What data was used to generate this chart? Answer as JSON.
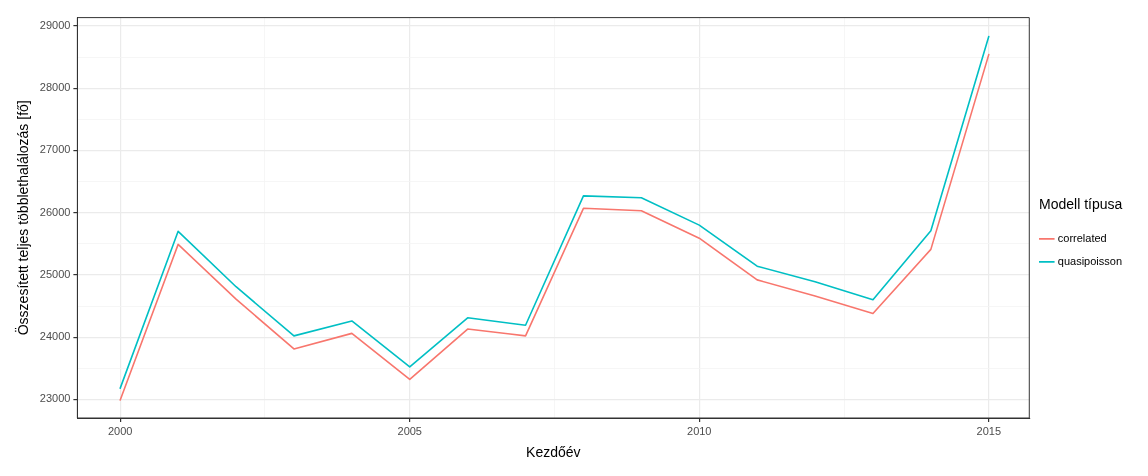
{
  "chart_data": {
    "type": "line",
    "xlabel": "Kezdőév",
    "ylabel": "Összesített teljes többlethalálozás [fő]",
    "legend_title": "Modell típusa",
    "legend": "right",
    "grid": true,
    "marker": "none",
    "line_style": "solid",
    "x": [
      2000,
      2001,
      2002,
      2003,
      2004,
      2005,
      2006,
      2007,
      2008,
      2009,
      2010,
      2011,
      2012,
      2013,
      2014,
      2015
    ],
    "xlim": [
      1999.26,
      2015.7
    ],
    "xticks": [
      2000,
      {
        "value": 2002.5,
        "label": null
      },
      2005,
      {
        "value": 2007.5,
        "label": null
      },
      2010,
      {
        "value": 2012.5,
        "label": null
      },
      2015
    ],
    "ylim": [
      22700,
      29135
    ],
    "yticks": [
      23000,
      {
        "value": 23500,
        "label": null
      },
      24000,
      {
        "value": 24500,
        "label": null
      },
      25000,
      {
        "value": 25500,
        "label": null
      },
      26000,
      {
        "value": 26500,
        "label": null
      },
      27000,
      {
        "value": 27500,
        "label": null
      },
      28000,
      {
        "value": 28500,
        "label": null
      },
      29000
    ],
    "series": [
      {
        "name": "correlated",
        "color": "#f8766d",
        "values": [
          22990,
          25490,
          24610,
          23810,
          24060,
          23320,
          24130,
          24020,
          26070,
          26030,
          25590,
          24920,
          24660,
          24380,
          25410,
          28540
        ]
      },
      {
        "name": "quasipoisson",
        "color": "#00bfc4",
        "values": [
          23180,
          25700,
          24810,
          24020,
          24260,
          23520,
          24310,
          24190,
          26270,
          26240,
          25800,
          25140,
          24890,
          24600,
          25710,
          28830
        ]
      }
    ]
  }
}
